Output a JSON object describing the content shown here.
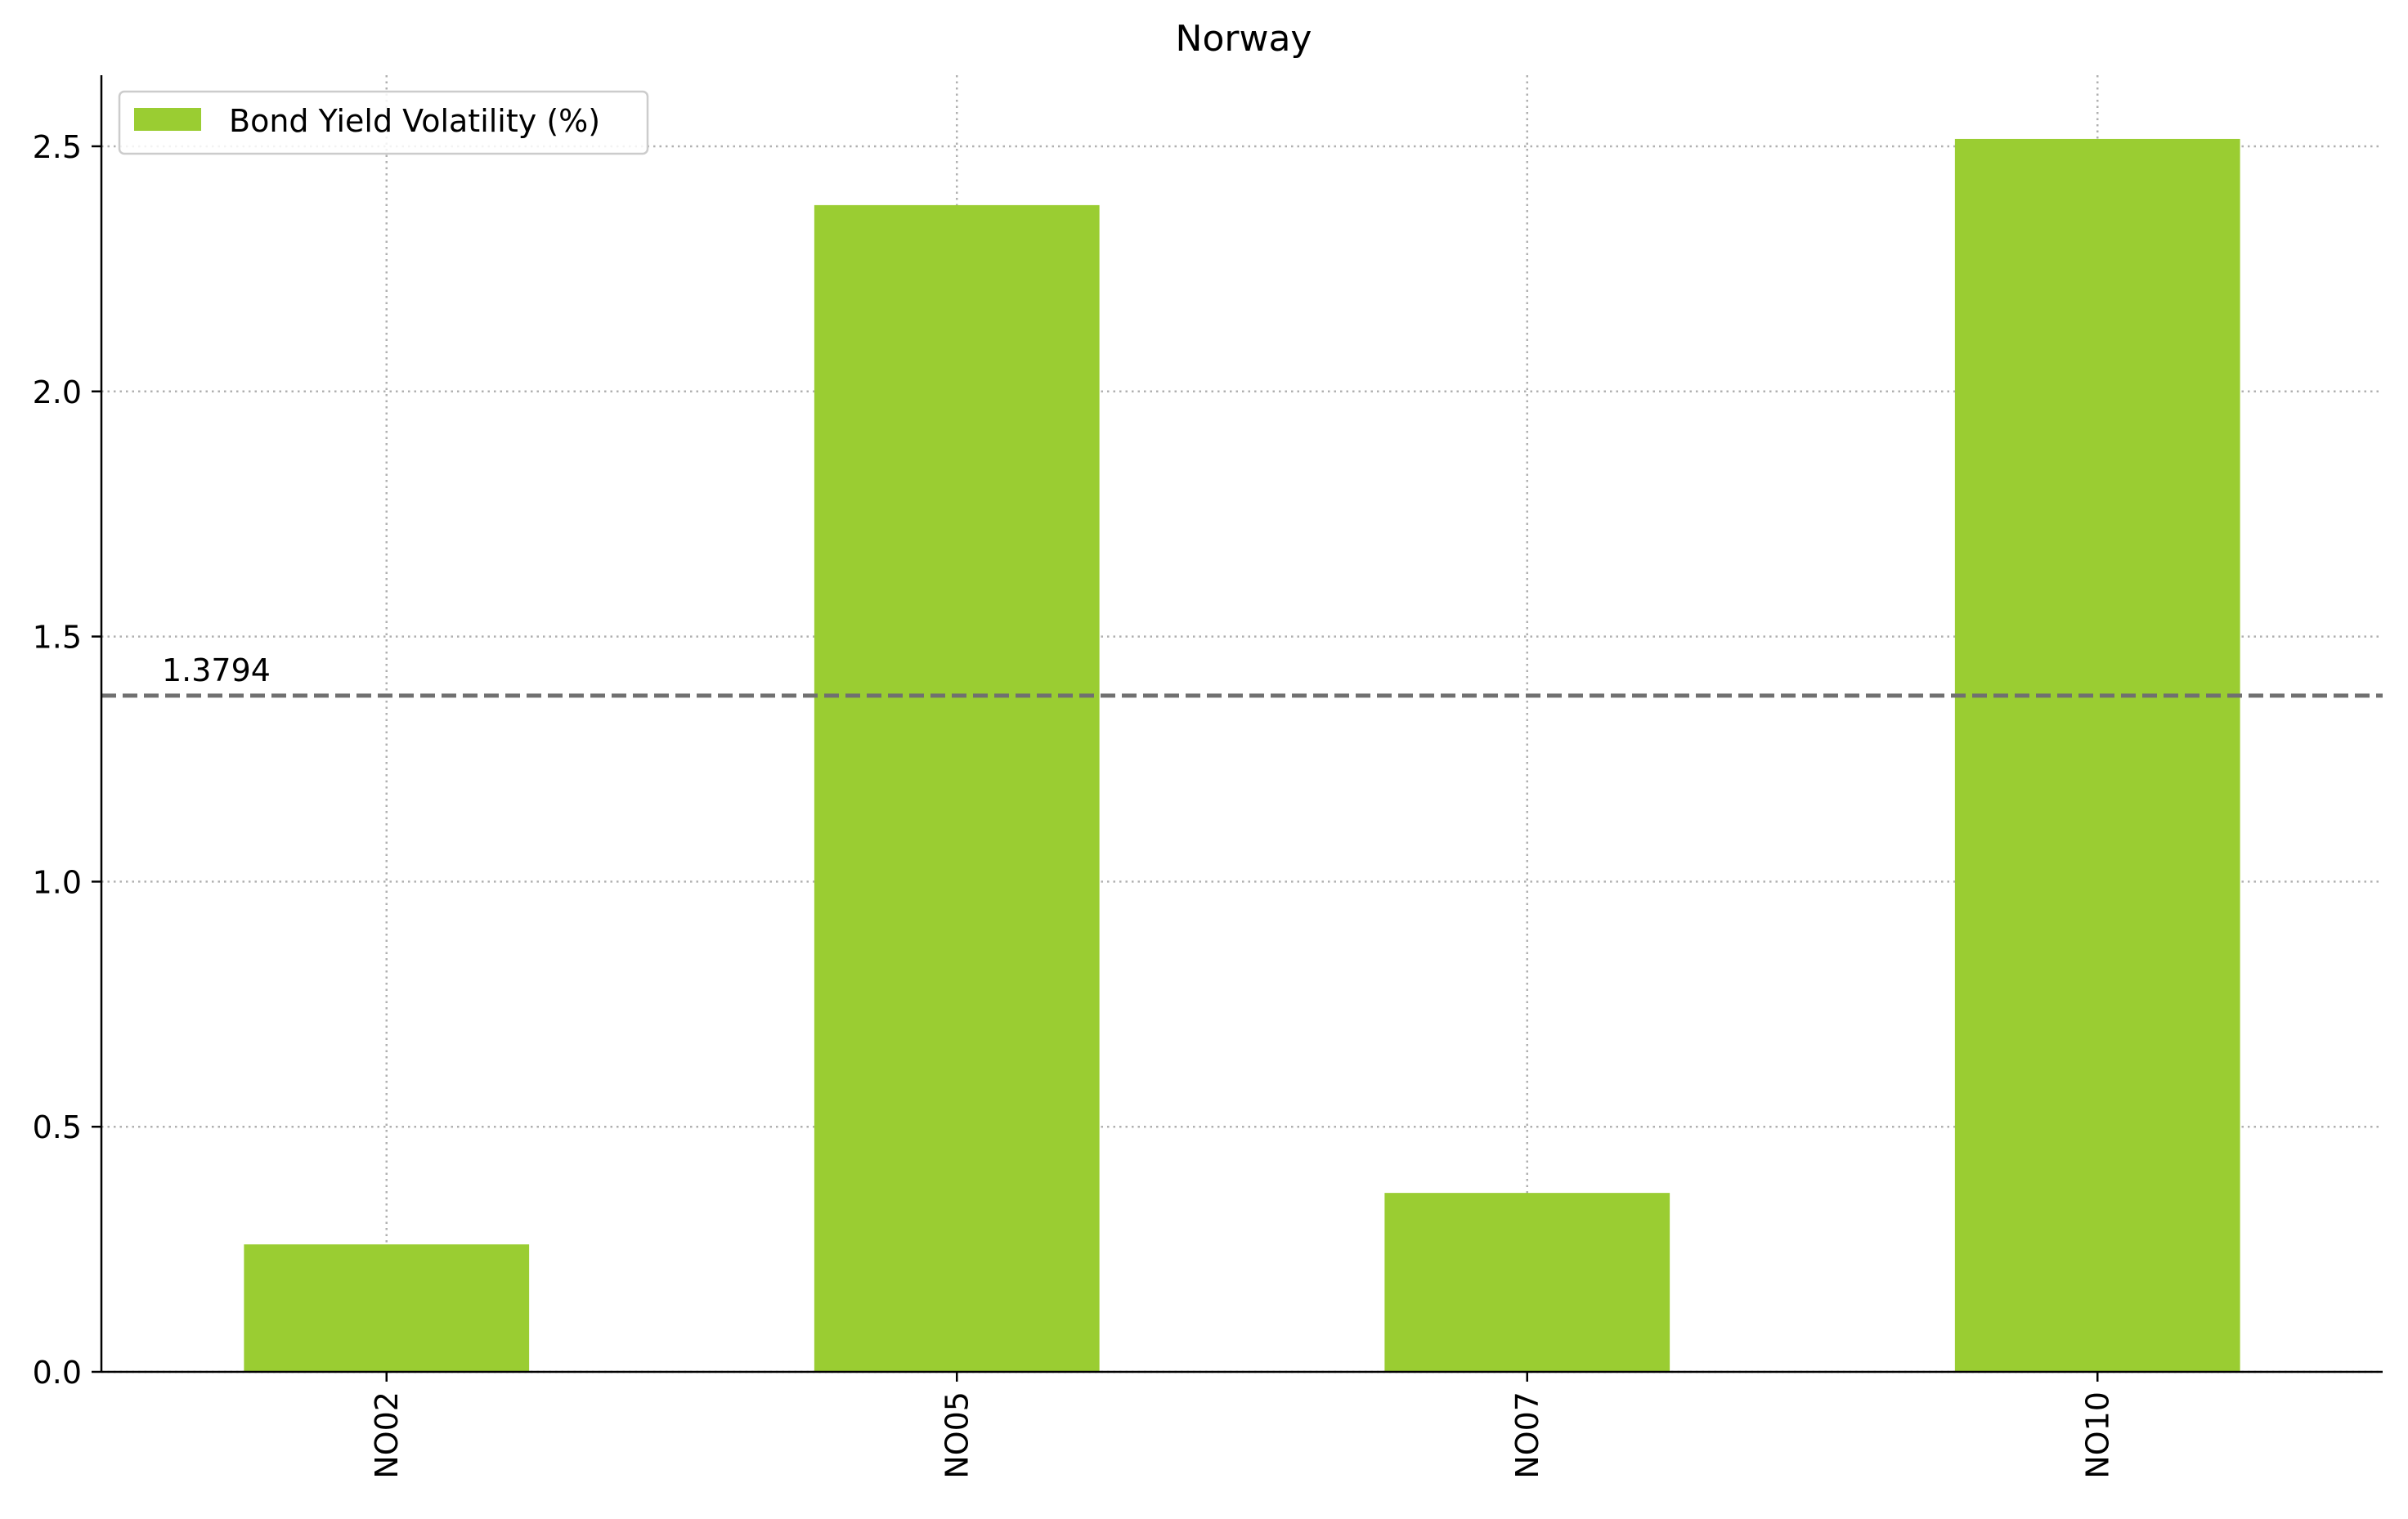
{
  "chart_data": {
    "type": "bar",
    "title": "Norway",
    "xlabel": "",
    "ylabel": "",
    "categories": [
      "NO02",
      "NO05",
      "NO07",
      "NO10"
    ],
    "series": [
      {
        "name": "Bond Yield Volatility (%)",
        "values": [
          0.26,
          2.38,
          0.365,
          2.515
        ],
        "color": "#9acd32"
      }
    ],
    "ylim": [
      0,
      2.645
    ],
    "yticks": [
      0.0,
      0.5,
      1.0,
      1.5,
      2.0,
      2.5
    ],
    "ytick_labels": [
      "0.0",
      "0.5",
      "1.0",
      "1.5",
      "2.0",
      "2.5"
    ],
    "reference_line": {
      "value": 1.3794,
      "label": "1.3794",
      "style": "dashed",
      "color": "#707070"
    },
    "grid": true,
    "grid_style": "dotted",
    "legend_position": "top-left",
    "x_tick_rotation": "vertical"
  }
}
